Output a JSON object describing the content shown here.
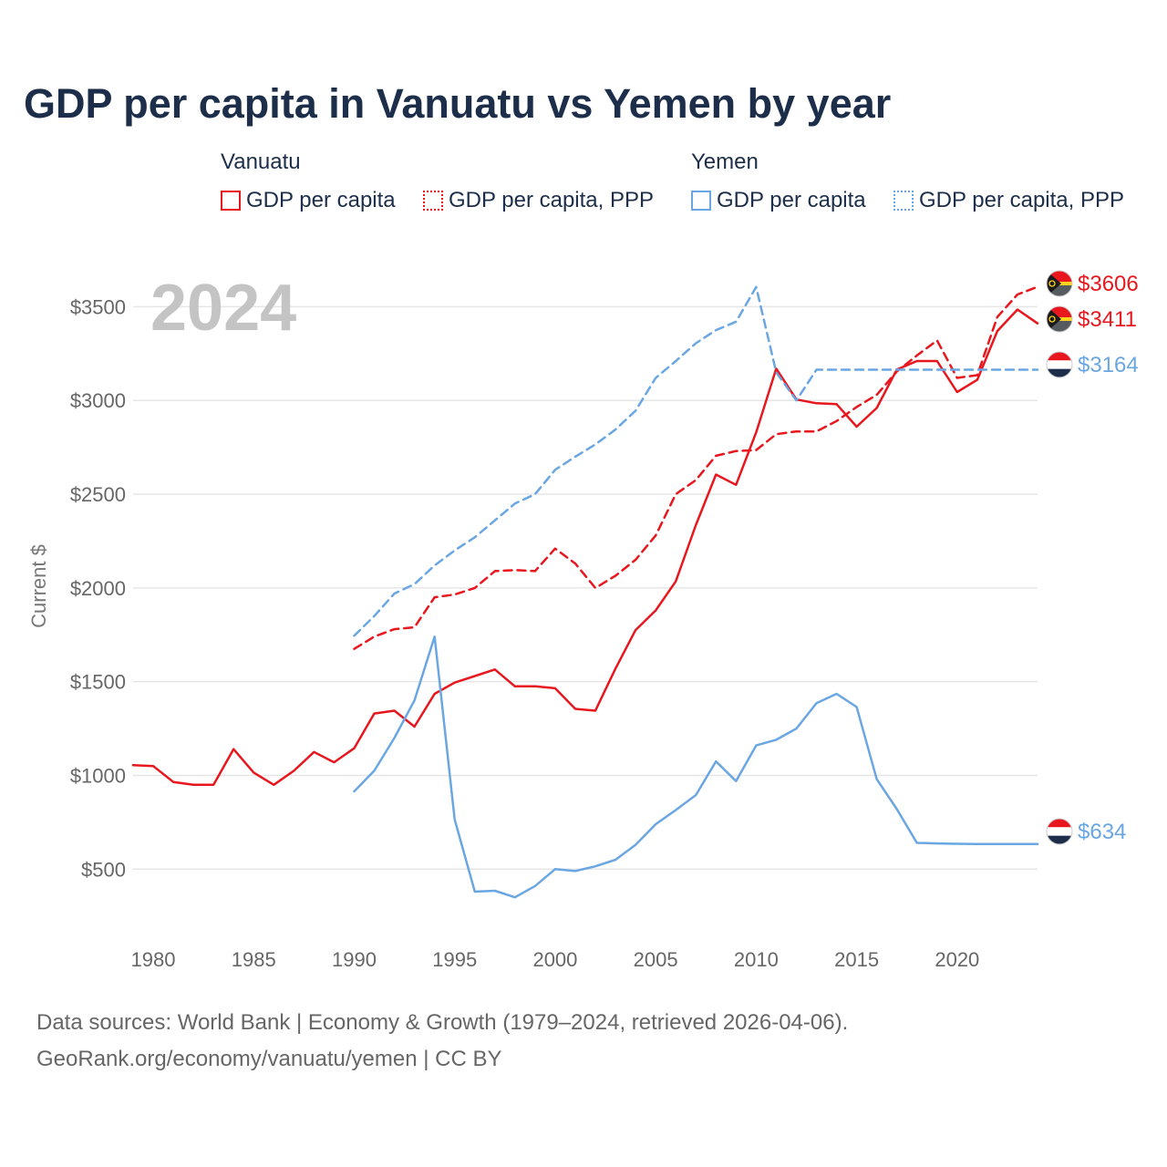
{
  "title": "GDP per capita in Vanuatu vs Yemen by year",
  "legend": {
    "groups": [
      {
        "name": "Vanuatu",
        "color": "#e8171e",
        "items": [
          "GDP per capita",
          "GDP per capita, PPP"
        ]
      },
      {
        "name": "Yemen",
        "color": "#6aa7e2",
        "items": [
          "GDP per capita",
          "GDP per capita, PPP"
        ]
      }
    ]
  },
  "source": {
    "line1": "Data sources: World Bank | Economy & Growth (1979–2024, retrieved 2026-04-06).",
    "line2": "GeoRank.org/economy/vanuatu/yemen | CC BY"
  },
  "chart_data": {
    "type": "line",
    "title": "GDP per capita in Vanuatu vs Yemen by year",
    "year_label": "2024",
    "xlabel": "",
    "ylabel": "Current $",
    "xlim": [
      1979,
      2024
    ],
    "ylim": [
      200,
      3750
    ],
    "x_ticks": [
      1980,
      1985,
      1990,
      1995,
      2000,
      2005,
      2010,
      2015,
      2020
    ],
    "y_ticks": [
      500,
      1000,
      1500,
      2000,
      2500,
      3000,
      3500
    ],
    "y_tick_labels": [
      "$500",
      "$1000",
      "$1500",
      "$2000",
      "$2500",
      "$3000",
      "$3500"
    ],
    "grid": true,
    "series": [
      {
        "name": "Vanuatu GDP per capita",
        "color": "#e8171e",
        "dash": "solid",
        "end_label": "$3411",
        "flag": "vanuatu",
        "x": [
          1979,
          1980,
          1981,
          1982,
          1983,
          1984,
          1985,
          1986,
          1987,
          1988,
          1989,
          1990,
          1991,
          1992,
          1993,
          1994,
          1995,
          1996,
          1997,
          1998,
          1999,
          2000,
          2001,
          2002,
          2003,
          2004,
          2005,
          2006,
          2007,
          2008,
          2009,
          2010,
          2011,
          2012,
          2013,
          2014,
          2015,
          2016,
          2017,
          2018,
          2019,
          2020,
          2021,
          2022,
          2023,
          2024
        ],
        "values": [
          1055,
          1050,
          965,
          950,
          950,
          1140,
          1015,
          950,
          1025,
          1125,
          1070,
          1145,
          1330,
          1345,
          1260,
          1435,
          1495,
          1530,
          1565,
          1475,
          1475,
          1465,
          1355,
          1345,
          1570,
          1775,
          1880,
          2035,
          2335,
          2605,
          2550,
          2830,
          3170,
          3005,
          2985,
          2980,
          2860,
          2960,
          3165,
          3210,
          3210,
          3045,
          3110,
          3370,
          3485,
          3411
        ]
      },
      {
        "name": "Vanuatu GDP per capita, PPP",
        "color": "#e8171e",
        "dash": "dashed",
        "end_label": "$3606",
        "flag": "vanuatu",
        "x": [
          1990,
          1991,
          1992,
          1993,
          1994,
          1995,
          1996,
          1997,
          1998,
          1999,
          2000,
          2001,
          2002,
          2003,
          2004,
          2005,
          2006,
          2007,
          2008,
          2009,
          2010,
          2011,
          2012,
          2013,
          2014,
          2015,
          2016,
          2017,
          2018,
          2019,
          2020,
          2021,
          2022,
          2023,
          2024
        ],
        "values": [
          1675,
          1740,
          1780,
          1790,
          1950,
          1965,
          2000,
          2090,
          2095,
          2090,
          2210,
          2130,
          2000,
          2065,
          2150,
          2280,
          2500,
          2575,
          2705,
          2730,
          2735,
          2820,
          2835,
          2835,
          2890,
          2965,
          3030,
          3155,
          3240,
          3320,
          3120,
          3135,
          3445,
          3565,
          3606
        ]
      },
      {
        "name": "Yemen GDP per capita",
        "color": "#6aa7e2",
        "dash": "solid",
        "end_label": "$634",
        "flag": "yemen",
        "x": [
          1990,
          1991,
          1992,
          1993,
          1994,
          1995,
          1996,
          1997,
          1998,
          1999,
          2000,
          2001,
          2002,
          2003,
          2004,
          2005,
          2006,
          2007,
          2008,
          2009,
          2010,
          2011,
          2012,
          2013,
          2014,
          2015,
          2016,
          2017,
          2018,
          2019,
          2020,
          2021,
          2022,
          2023,
          2024
        ],
        "values": [
          915,
          1025,
          1200,
          1400,
          1740,
          765,
          380,
          385,
          350,
          410,
          500,
          490,
          515,
          550,
          630,
          740,
          815,
          895,
          1075,
          970,
          1160,
          1190,
          1250,
          1385,
          1435,
          1365,
          980,
          820,
          640,
          637,
          635,
          634,
          634,
          634,
          634
        ]
      },
      {
        "name": "Yemen GDP per capita, PPP",
        "color": "#6aa7e2",
        "dash": "dashed",
        "end_label": "$3164",
        "flag": "yemen",
        "x": [
          1990,
          1991,
          1992,
          1993,
          1994,
          1995,
          1996,
          1997,
          1998,
          1999,
          2000,
          2001,
          2002,
          2003,
          2004,
          2005,
          2006,
          2007,
          2008,
          2009,
          2010,
          2011,
          2012,
          2013,
          2014,
          2015,
          2016,
          2017,
          2018,
          2019,
          2020,
          2021,
          2022,
          2023,
          2024
        ],
        "values": [
          1745,
          1850,
          1970,
          2020,
          2120,
          2200,
          2270,
          2360,
          2450,
          2500,
          2630,
          2700,
          2765,
          2845,
          2945,
          3120,
          3210,
          3305,
          3375,
          3420,
          3605,
          3150,
          3000,
          3164,
          3164,
          3164,
          3164,
          3164,
          3164,
          3164,
          3164,
          3164,
          3164,
          3164,
          3164
        ]
      }
    ]
  }
}
